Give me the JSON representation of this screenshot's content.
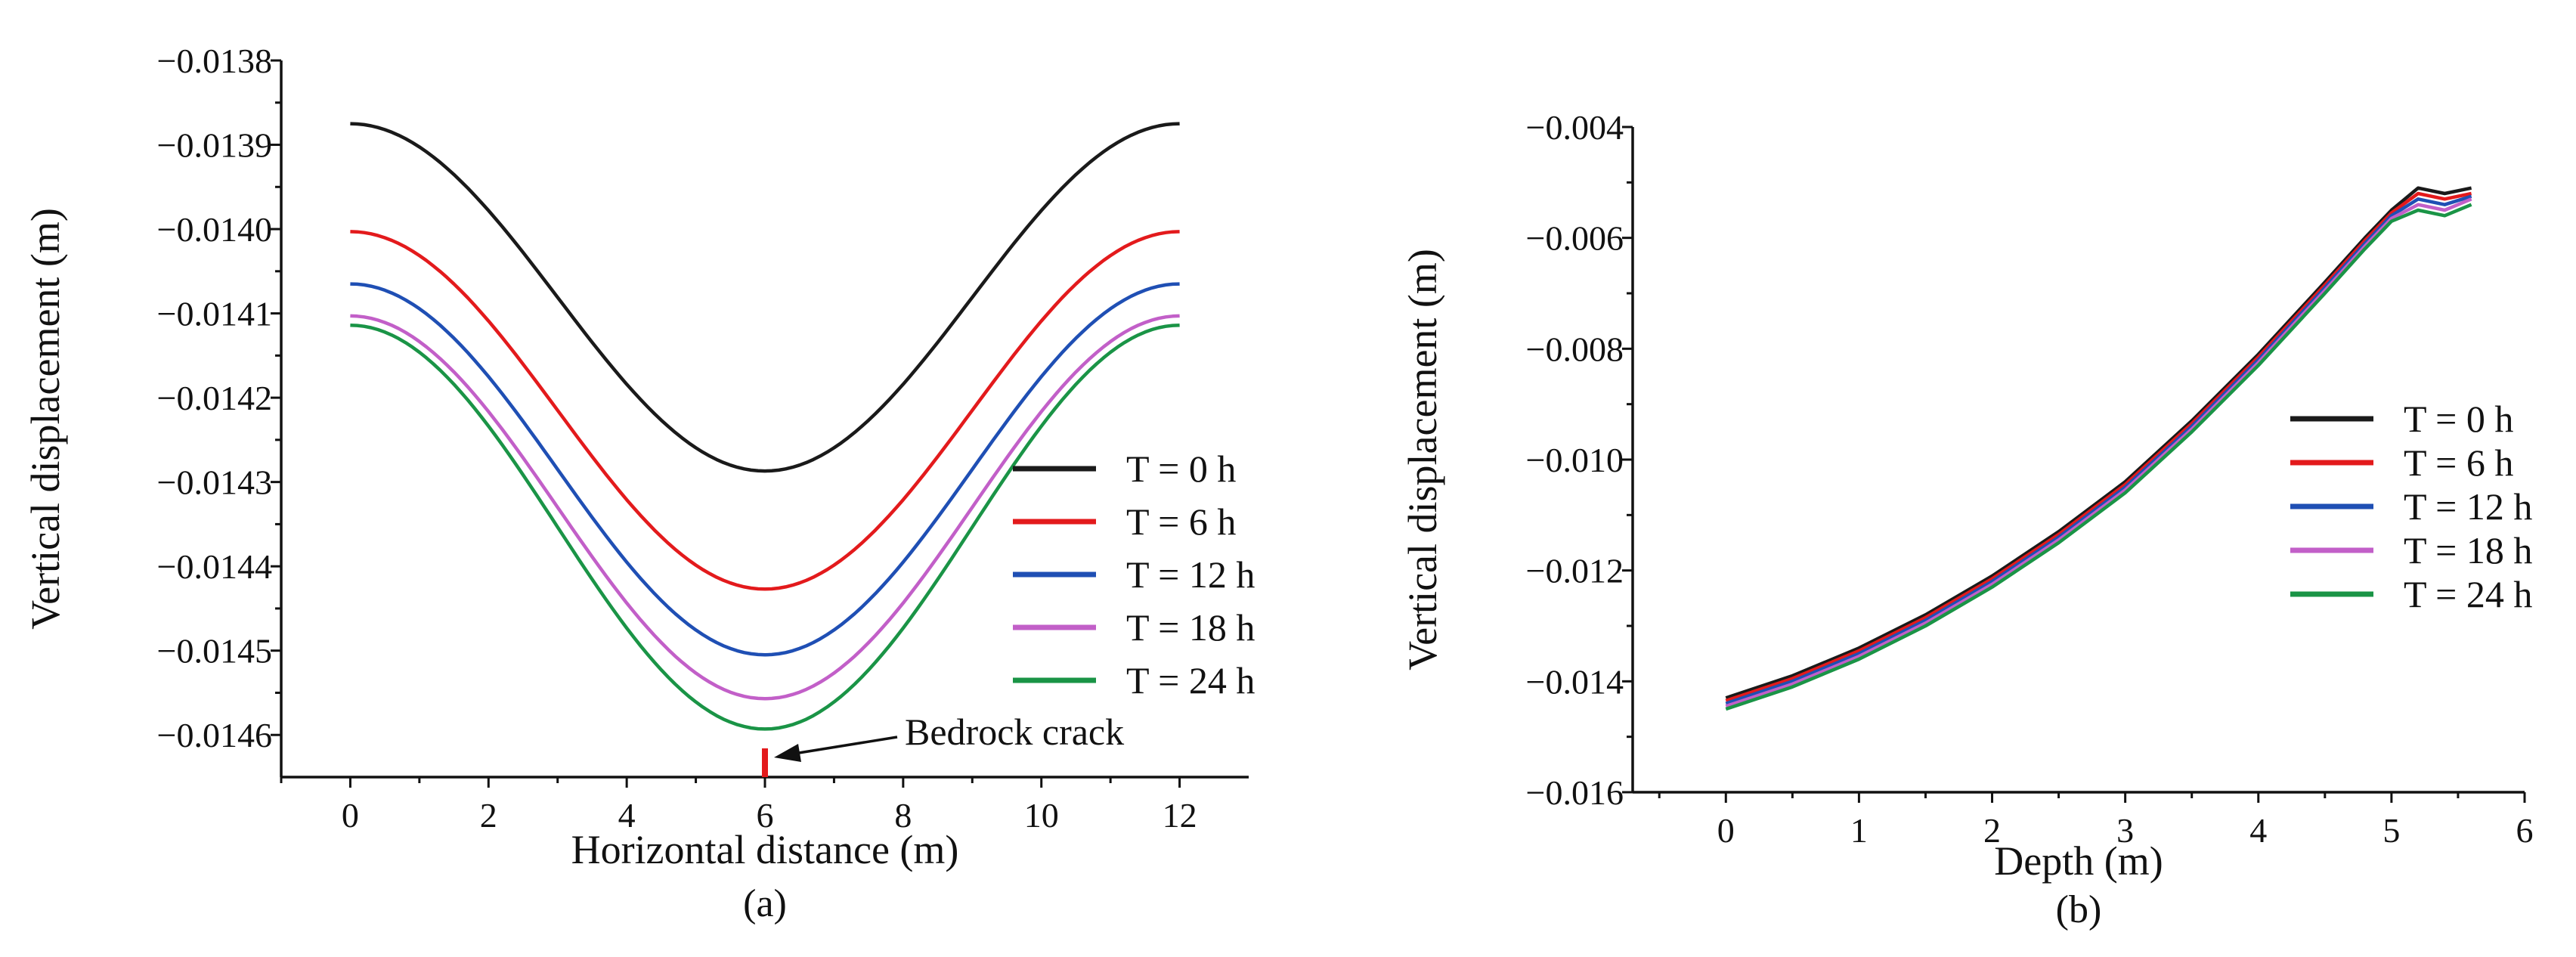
{
  "chart_data": [
    {
      "id": "a",
      "type": "line",
      "title": "",
      "caption": "(a)",
      "xlabel": "Horizontal distance  (m)",
      "ylabel": "Vertical displacement  (m)",
      "xlim": [
        -1,
        13
      ],
      "ylim": [
        -0.01465,
        -0.0138
      ],
      "xticks": [
        0,
        2,
        4,
        6,
        8,
        10,
        12
      ],
      "xtick_labels": [
        "0",
        "2",
        "4",
        "6",
        "8",
        "10",
        "12"
      ],
      "yticks": [
        -0.0138,
        -0.0139,
        -0.014,
        -0.0141,
        -0.0142,
        -0.0143,
        -0.0144,
        -0.0145,
        -0.0146
      ],
      "ytick_labels": [
        "−0.0138",
        "−0.0139",
        "−0.0140",
        "−0.0141",
        "−0.0142",
        "−0.0143",
        "−0.0144",
        "−0.0145",
        "−0.0146"
      ],
      "grid": false,
      "legend_position": "right",
      "series": [
        {
          "name": "T = 0 h",
          "color": "#1a1a1a",
          "edge": -0.013875,
          "min": -0.014287
        },
        {
          "name": "T = 6 h",
          "color": "#e31a1c",
          "edge": -0.014003,
          "min": -0.014427
        },
        {
          "name": "T = 12 h",
          "color": "#1f4fb4",
          "edge": -0.014065,
          "min": -0.014505
        },
        {
          "name": "T = 18 h",
          "color": "#c25fc8",
          "edge": -0.014103,
          "min": -0.014557
        },
        {
          "name": "T = 24 h",
          "color": "#1a9446",
          "edge": -0.014114,
          "min": -0.014593
        }
      ],
      "annotation": {
        "text": "Bedrock crack",
        "x": 6,
        "color": "#e31a1c"
      }
    },
    {
      "id": "b",
      "type": "line",
      "title": "",
      "caption": "(b)",
      "xlabel": "Depth (m)",
      "ylabel": "Vertical displacement  (m)",
      "xlim": [
        -0.7,
        6
      ],
      "ylim": [
        -0.016,
        -0.004
      ],
      "xticks": [
        0,
        1,
        2,
        3,
        4,
        5,
        6
      ],
      "xtick_labels": [
        "0",
        "1",
        "2",
        "3",
        "4",
        "5",
        "6"
      ],
      "yticks": [
        -0.004,
        -0.006,
        -0.008,
        -0.01,
        -0.012,
        -0.014,
        -0.016
      ],
      "ytick_labels": [
        "−0.004",
        "−0.006",
        "−0.008",
        "−0.010",
        "−0.012",
        "−0.014",
        "−0.016"
      ],
      "grid": false,
      "legend_position": "right",
      "x": [
        0,
        0.5,
        1,
        1.5,
        2,
        2.5,
        3,
        3.5,
        4,
        4.5,
        4.8,
        5,
        5.2,
        5.4,
        5.6
      ],
      "series": [
        {
          "name": "T = 0 h",
          "color": "#1a1a1a",
          "values": [
            -0.0143,
            -0.0139,
            -0.0134,
            -0.0128,
            -0.0121,
            -0.0113,
            -0.0104,
            -0.0093,
            -0.0081,
            -0.0068,
            -0.006,
            -0.0055,
            -0.0051,
            -0.0052,
            -0.0051
          ]
        },
        {
          "name": "T = 6 h",
          "color": "#e31a1c",
          "values": [
            -0.01435,
            -0.01395,
            -0.01345,
            -0.01285,
            -0.01215,
            -0.01135,
            -0.01045,
            -0.00935,
            -0.00815,
            -0.00685,
            -0.00605,
            -0.00555,
            -0.0052,
            -0.0053,
            -0.0052
          ]
        },
        {
          "name": "T = 12 h",
          "color": "#1f4fb4",
          "values": [
            -0.0144,
            -0.014,
            -0.0135,
            -0.0129,
            -0.0122,
            -0.0114,
            -0.0105,
            -0.0094,
            -0.0082,
            -0.0069,
            -0.0061,
            -0.0056,
            -0.0053,
            -0.0054,
            -0.00525
          ]
        },
        {
          "name": "T = 18 h",
          "color": "#c25fc8",
          "values": [
            -0.01445,
            -0.01405,
            -0.01355,
            -0.01295,
            -0.01225,
            -0.01145,
            -0.01055,
            -0.00945,
            -0.00825,
            -0.00695,
            -0.00615,
            -0.00565,
            -0.0054,
            -0.0055,
            -0.0053
          ]
        },
        {
          "name": "T = 24 h",
          "color": "#1a9446",
          "values": [
            -0.0145,
            -0.0141,
            -0.0136,
            -0.013,
            -0.0123,
            -0.0115,
            -0.0106,
            -0.0095,
            -0.0083,
            -0.007,
            -0.0062,
            -0.0057,
            -0.0055,
            -0.0056,
            -0.0054
          ]
        }
      ]
    }
  ]
}
